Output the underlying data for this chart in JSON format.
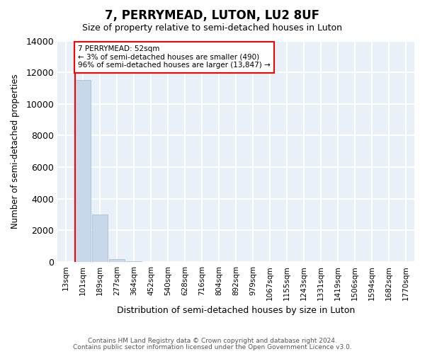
{
  "title": "7, PERRYMEAD, LUTON, LU2 8UF",
  "subtitle": "Size of property relative to semi-detached houses in Luton",
  "xlabel": "Distribution of semi-detached houses by size in Luton",
  "ylabel": "Number of semi-detached properties",
  "bin_labels": [
    "13sqm",
    "101sqm",
    "189sqm",
    "277sqm",
    "364sqm",
    "452sqm",
    "540sqm",
    "628sqm",
    "716sqm",
    "804sqm",
    "892sqm",
    "979sqm",
    "1067sqm",
    "1155sqm",
    "1243sqm",
    "1331sqm",
    "1419sqm",
    "1506sqm",
    "1594sqm",
    "1682sqm",
    "1770sqm"
  ],
  "bar_values": [
    0,
    11500,
    3000,
    200,
    50,
    15,
    5,
    2,
    1,
    1,
    0,
    0,
    0,
    0,
    0,
    0,
    0,
    0,
    0,
    0,
    0
  ],
  "bar_color": "#c8d8ea",
  "bar_edge_color": "#9ab8d0",
  "annotation_text": "7 PERRYMEAD: 52sqm\n← 3% of semi-detached houses are smaller (490)\n96% of semi-detached houses are larger (13,847) →",
  "annotation_box_color": "white",
  "annotation_box_edge_color": "red",
  "vline_color": "red",
  "ylim": [
    0,
    14000
  ],
  "yticks": [
    0,
    2000,
    4000,
    6000,
    8000,
    10000,
    12000,
    14000
  ],
  "background_color": "#eaf0f8",
  "grid_color": "white",
  "footer_line1": "Contains HM Land Registry data © Crown copyright and database right 2024.",
  "footer_line2": "Contains public sector information licensed under the Open Government Licence v3.0."
}
